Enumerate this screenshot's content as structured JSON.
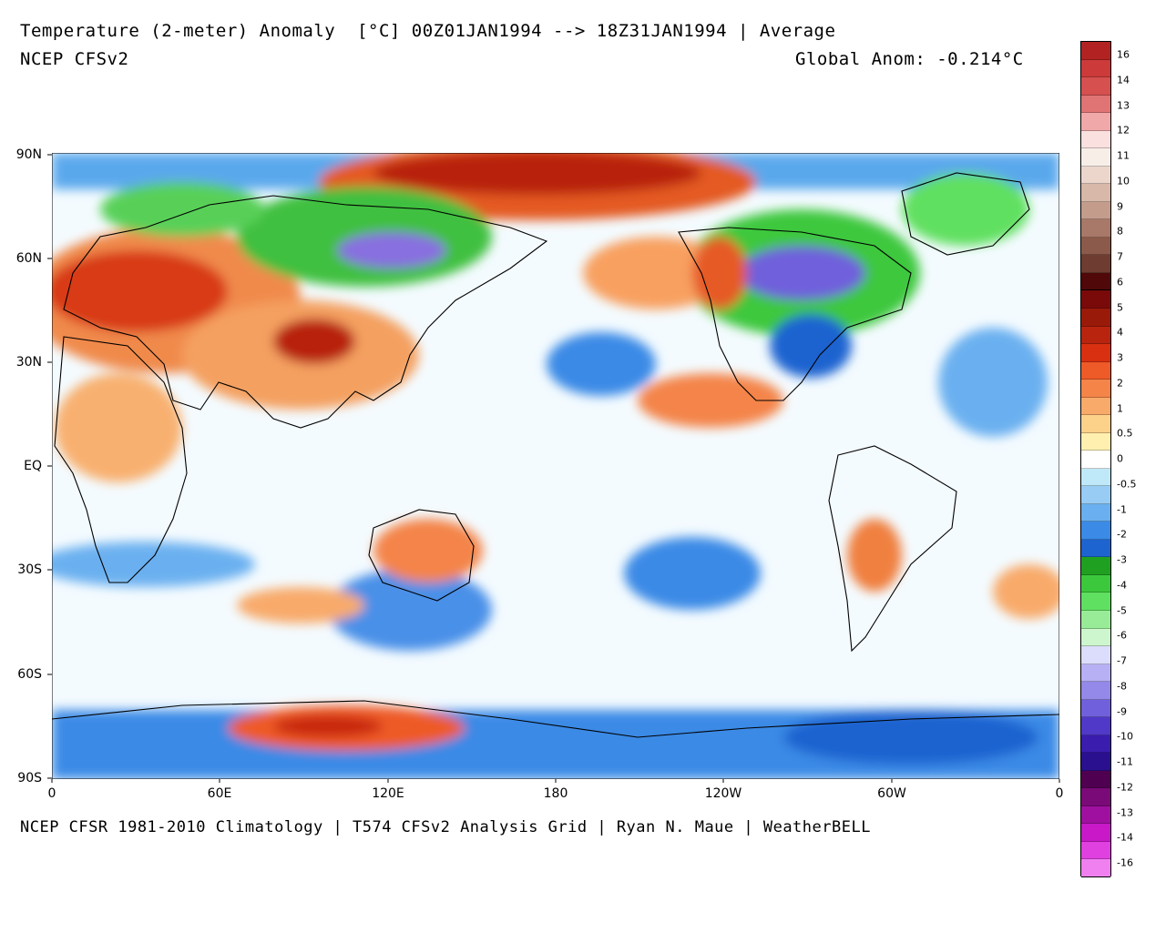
{
  "header": {
    "title": "Temperature (2-meter) Anomaly  [°C] 00Z01JAN1994 --> 18Z31JAN1994 | Average",
    "model": "NCEP CFSv2",
    "global_anom": "Global Anom: -0.214°C"
  },
  "footer": {
    "credit": "NCEP CFSR 1981-2010 Climatology | T574 CFSv2 Analysis Grid | Ryan N. Maue | WeatherBELL"
  },
  "axes": {
    "y_ticks": [
      "90N",
      "60N",
      "30N",
      "EQ",
      "30S",
      "60S",
      "90S"
    ],
    "x_ticks": [
      "0",
      "60E",
      "120E",
      "180",
      "120W",
      "60W",
      "0"
    ]
  },
  "legend": {
    "labels": [
      "16",
      "14",
      "13",
      "12",
      "11",
      "10",
      "9",
      "8",
      "7",
      "6",
      "5",
      "4",
      "3",
      "2",
      "1",
      "0.5",
      "0",
      "-0.5",
      "-1",
      "-2",
      "-3",
      "-4",
      "-5",
      "-6",
      "-7",
      "-8",
      "-9",
      "-10",
      "-11",
      "-12",
      "-13",
      "-14",
      "-16"
    ],
    "colors": [
      "#b22222",
      "#cc3a3a",
      "#d65050",
      "#e07474",
      "#f0a8a8",
      "#fbe0e0",
      "#f7eee8",
      "#ecd6cc",
      "#d8b8a8",
      "#c49c8c",
      "#a87868",
      "#8c5a4a",
      "#6e3c30",
      "#500808",
      "#7a0a0a",
      "#9a1a0a",
      "#b8240e",
      "#d83010",
      "#ee5a28",
      "#f48448",
      "#f8aa6a",
      "#fcd28a",
      "#fff0b0",
      "#ffffff",
      "#bfe8f8",
      "#98ccf4",
      "#6ab0f0",
      "#3a8ae6",
      "#1e64d0",
      "#20a020",
      "#3cc83c",
      "#60e060",
      "#98ec98",
      "#cef6ce",
      "#dcdcfc",
      "#b8b0f4",
      "#9488e8",
      "#7060dc",
      "#5038c8",
      "#3a1cae",
      "#2a108e",
      "#500050",
      "#7a0a78",
      "#a010a0",
      "#c818c8",
      "#e040e0",
      "#f080f0"
    ],
    "separator_index": 13
  }
}
